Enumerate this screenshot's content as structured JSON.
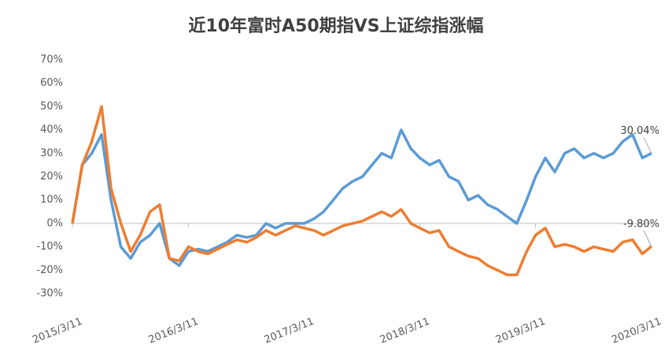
{
  "chart_data": {
    "type": "line",
    "title": "近10年富时A50期指VS上证综指涨幅",
    "x": [
      "2015/3/11",
      "2015/4/11",
      "2015/5/11",
      "2015/6/11",
      "2015/7/11",
      "2015/8/11",
      "2015/9/11",
      "2015/10/11",
      "2015/11/11",
      "2015/12/11",
      "2016/1/11",
      "2016/2/11",
      "2016/3/11",
      "2016/4/11",
      "2016/5/11",
      "2016/6/11",
      "2016/7/11",
      "2016/8/11",
      "2016/9/11",
      "2016/10/11",
      "2016/11/11",
      "2016/12/11",
      "2017/1/11",
      "2017/2/11",
      "2017/3/11",
      "2017/4/11",
      "2017/5/11",
      "2017/6/11",
      "2017/7/11",
      "2017/8/11",
      "2017/9/11",
      "2017/10/11",
      "2017/11/11",
      "2017/12/11",
      "2018/1/11",
      "2018/2/11",
      "2018/3/11",
      "2018/4/11",
      "2018/5/11",
      "2018/6/11",
      "2018/7/11",
      "2018/8/11",
      "2018/9/11",
      "2018/10/11",
      "2018/11/11",
      "2018/12/11",
      "2019/1/11",
      "2019/2/11",
      "2019/3/11",
      "2019/4/11",
      "2019/5/11",
      "2019/6/11",
      "2019/7/11",
      "2019/8/11",
      "2019/9/11",
      "2019/10/11",
      "2019/11/11",
      "2019/12/11",
      "2020/1/11",
      "2020/2/11",
      "2020/3/11"
    ],
    "series": [
      {
        "name": "富时A50期指",
        "color": "#5b9bd5",
        "values": [
          0,
          25,
          30,
          38,
          10,
          -10,
          -15,
          -8,
          -5,
          0,
          -15,
          -18,
          -12,
          -11,
          -12,
          -10,
          -8,
          -5,
          -6,
          -5,
          0,
          -2,
          0,
          0,
          0,
          2,
          5,
          10,
          15,
          18,
          20,
          25,
          30,
          28,
          40,
          32,
          28,
          25,
          27,
          20,
          18,
          10,
          12,
          8,
          6,
          3,
          0,
          10,
          20,
          28,
          22,
          30,
          32,
          28,
          30,
          28,
          30,
          35,
          38,
          28,
          30.04
        ],
        "value_labels": [
          null,
          null,
          null,
          null,
          null,
          null,
          null,
          null,
          null,
          null,
          null,
          null,
          null,
          null,
          null,
          null,
          null,
          null,
          null,
          null,
          null,
          null,
          null,
          null,
          null,
          null,
          null,
          null,
          null,
          null,
          null,
          null,
          null,
          null,
          null,
          null,
          null,
          null,
          null,
          null,
          null,
          null,
          null,
          null,
          null,
          null,
          null,
          null,
          null,
          null,
          null,
          null,
          null,
          null,
          null,
          null,
          null,
          null,
          null,
          null,
          "30.04%"
        ]
      },
      {
        "name": "上证综指",
        "color": "#ed7d31",
        "values": [
          0,
          25,
          35,
          50,
          15,
          0,
          -12,
          -5,
          5,
          8,
          -15,
          -16,
          -10,
          -12,
          -13,
          -11,
          -9,
          -7,
          -8,
          -6,
          -3,
          -5,
          -3,
          -1,
          -2,
          -3,
          -5,
          -3,
          -1,
          0,
          1,
          3,
          5,
          3,
          6,
          0,
          -2,
          -4,
          -3,
          -10,
          -12,
          -14,
          -15,
          -18,
          -20,
          -22,
          -22,
          -12,
          -5,
          -2,
          -10,
          -9,
          -10,
          -12,
          -10,
          -11,
          -12,
          -8,
          -7,
          -13,
          -9.8
        ],
        "value_labels": [
          null,
          null,
          null,
          null,
          null,
          null,
          null,
          null,
          null,
          null,
          null,
          null,
          null,
          null,
          null,
          null,
          null,
          null,
          null,
          null,
          null,
          null,
          null,
          null,
          null,
          null,
          null,
          null,
          null,
          null,
          null,
          null,
          null,
          null,
          null,
          null,
          null,
          null,
          null,
          null,
          null,
          null,
          null,
          null,
          null,
          null,
          null,
          null,
          null,
          null,
          null,
          null,
          null,
          null,
          null,
          null,
          null,
          null,
          null,
          null,
          "-9.80%"
        ]
      }
    ],
    "ylim": [
      -30,
      70
    ],
    "yticks": [
      {
        "value": -30,
        "label": "-30%"
      },
      {
        "value": -20,
        "label": "-20%"
      },
      {
        "value": -10,
        "label": "-10%"
      },
      {
        "value": 0,
        "label": "0%"
      },
      {
        "value": 10,
        "label": "10%"
      },
      {
        "value": 20,
        "label": "20%"
      },
      {
        "value": 30,
        "label": "30%"
      },
      {
        "value": 40,
        "label": "40%"
      },
      {
        "value": 50,
        "label": "50%"
      },
      {
        "value": 60,
        "label": "60%"
      },
      {
        "value": 70,
        "label": "70%"
      }
    ],
    "xticks": [
      "2015/3/11",
      "2016/3/11",
      "2017/3/11",
      "2018/3/11",
      "2019/3/11",
      "2020/3/11"
    ]
  }
}
